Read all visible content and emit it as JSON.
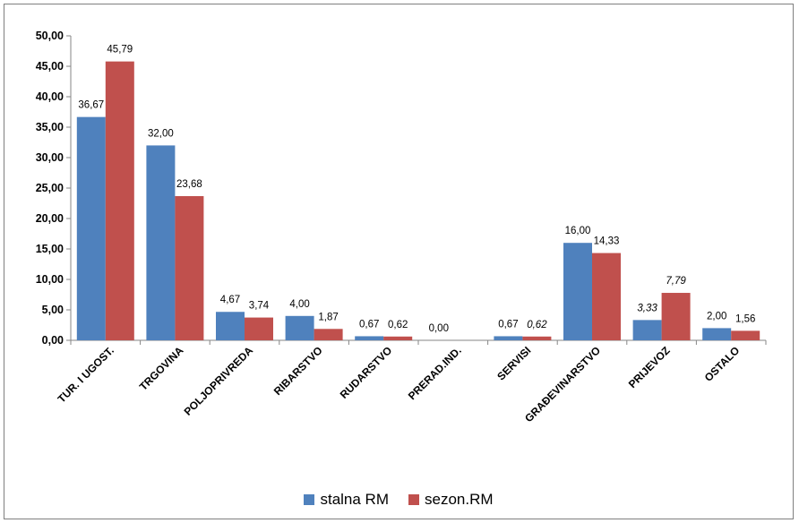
{
  "chart_data": {
    "type": "bar",
    "categories": [
      "TUR. I UGOST.",
      "TRGOVINA",
      "POLJOPRIVREDA",
      "RIBARSTVO",
      "RUDARSTVO",
      "PRERAD.IND.",
      "SERVISI",
      "GRAĐEVINARSTVO",
      "PRIJEVOZ",
      "OSTALO"
    ],
    "series": [
      {
        "name": "stalna RM",
        "color": "#4f81bd",
        "values": [
          36.67,
          32.0,
          4.67,
          4.0,
          0.67,
          0.0,
          0.67,
          16.0,
          3.33,
          2.0
        ],
        "labels": [
          "36,67",
          "32,00",
          "4,67",
          "4,00",
          "0,67",
          "0,00",
          "0,67",
          "16,00",
          "3,33",
          "2,00"
        ]
      },
      {
        "name": "sezon.RM",
        "color": "#c0504d",
        "values": [
          45.79,
          23.68,
          3.74,
          1.87,
          0.62,
          0.0,
          0.62,
          14.33,
          7.79,
          1.56
        ],
        "labels": [
          "45,79",
          "23,68",
          "3,74",
          "1,87",
          "0,62",
          "",
          "0,62",
          "14,33",
          "7,79",
          "1,56"
        ]
      }
    ],
    "y_ticks": [
      "0,00",
      "5,00",
      "10,00",
      "15,00",
      "20,00",
      "25,00",
      "30,00",
      "35,00",
      "40,00",
      "45,00",
      "50,00"
    ],
    "ylim": [
      0,
      50
    ],
    "grid": false,
    "legend_position": "bottom"
  }
}
